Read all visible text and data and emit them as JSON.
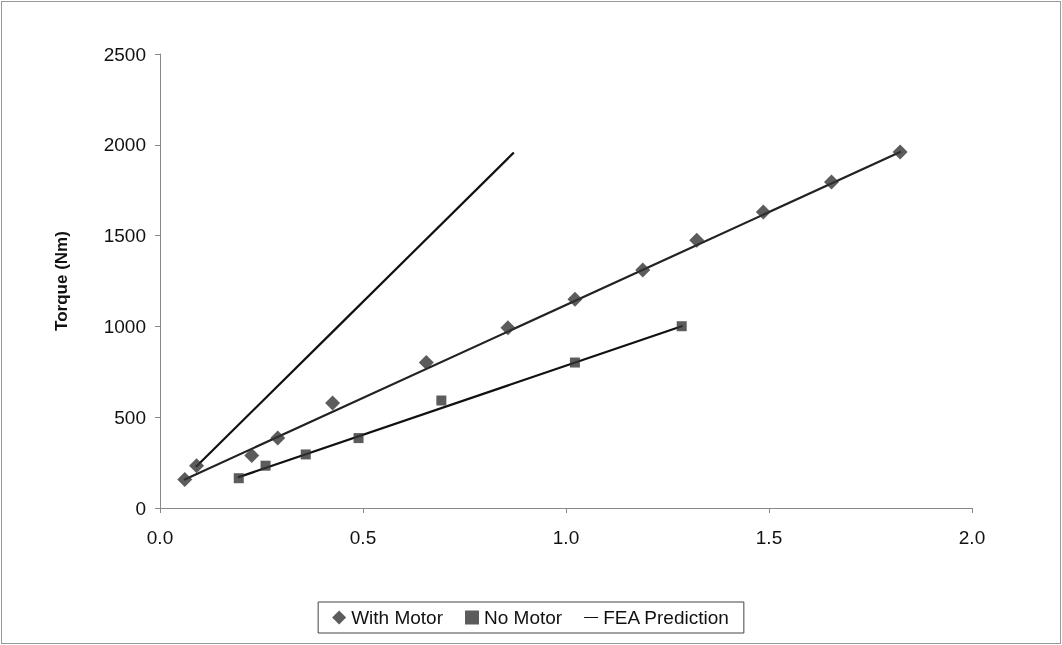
{
  "chart_data": {
    "type": "scatter",
    "ylabel": "Torque (Nm)",
    "xlim": [
      0,
      2
    ],
    "xticks": [
      {
        "value": 0,
        "label": "0.0"
      },
      0.5,
      {
        "value": 1,
        "label": "1.0"
      },
      1.5,
      {
        "value": 2,
        "label": "2.0"
      }
    ],
    "ylim": [
      0,
      2500
    ],
    "yticks": [
      0,
      500,
      1000,
      1500,
      2000,
      2500
    ],
    "grid": false,
    "legend": "bottom",
    "series": [
      {
        "name": "With Motor",
        "marker": "diamond",
        "color": "#333333",
        "x": [
          0.061,
          0.09,
          0.226,
          0.29,
          0.425,
          0.656,
          0.857,
          1.022,
          1.189,
          1.322,
          1.486,
          1.654,
          1.823
        ],
        "values": [
          157,
          232,
          289,
          385,
          578,
          801,
          992,
          1150,
          1310,
          1475,
          1630,
          1795,
          1960
        ]
      },
      {
        "name": "No Motor",
        "marker": "square",
        "color": "#333333",
        "x": [
          0.194,
          0.26,
          0.359,
          0.489,
          0.693,
          1.022,
          1.285
        ],
        "values": [
          164,
          233,
          295,
          385,
          592,
          801,
          1001
        ]
      },
      {
        "name": "FEA Prediction",
        "type": "line",
        "marker": "none",
        "line_style": "solid",
        "color": "#111111",
        "x": [
          0.09,
          0.425,
          0.87
        ],
        "values": [
          230,
          970,
          1954
        ]
      },
      {
        "type": "line",
        "marker": "none",
        "line_style": "solid",
        "color": "#222222",
        "x": [
          0.061,
          1.823
        ],
        "values": [
          157,
          1960
        ]
      },
      {
        "type": "line",
        "marker": "none",
        "line_style": "solid",
        "color": "#111111",
        "x": [
          0.194,
          1.285
        ],
        "values": [
          170,
          1001
        ]
      }
    ]
  }
}
